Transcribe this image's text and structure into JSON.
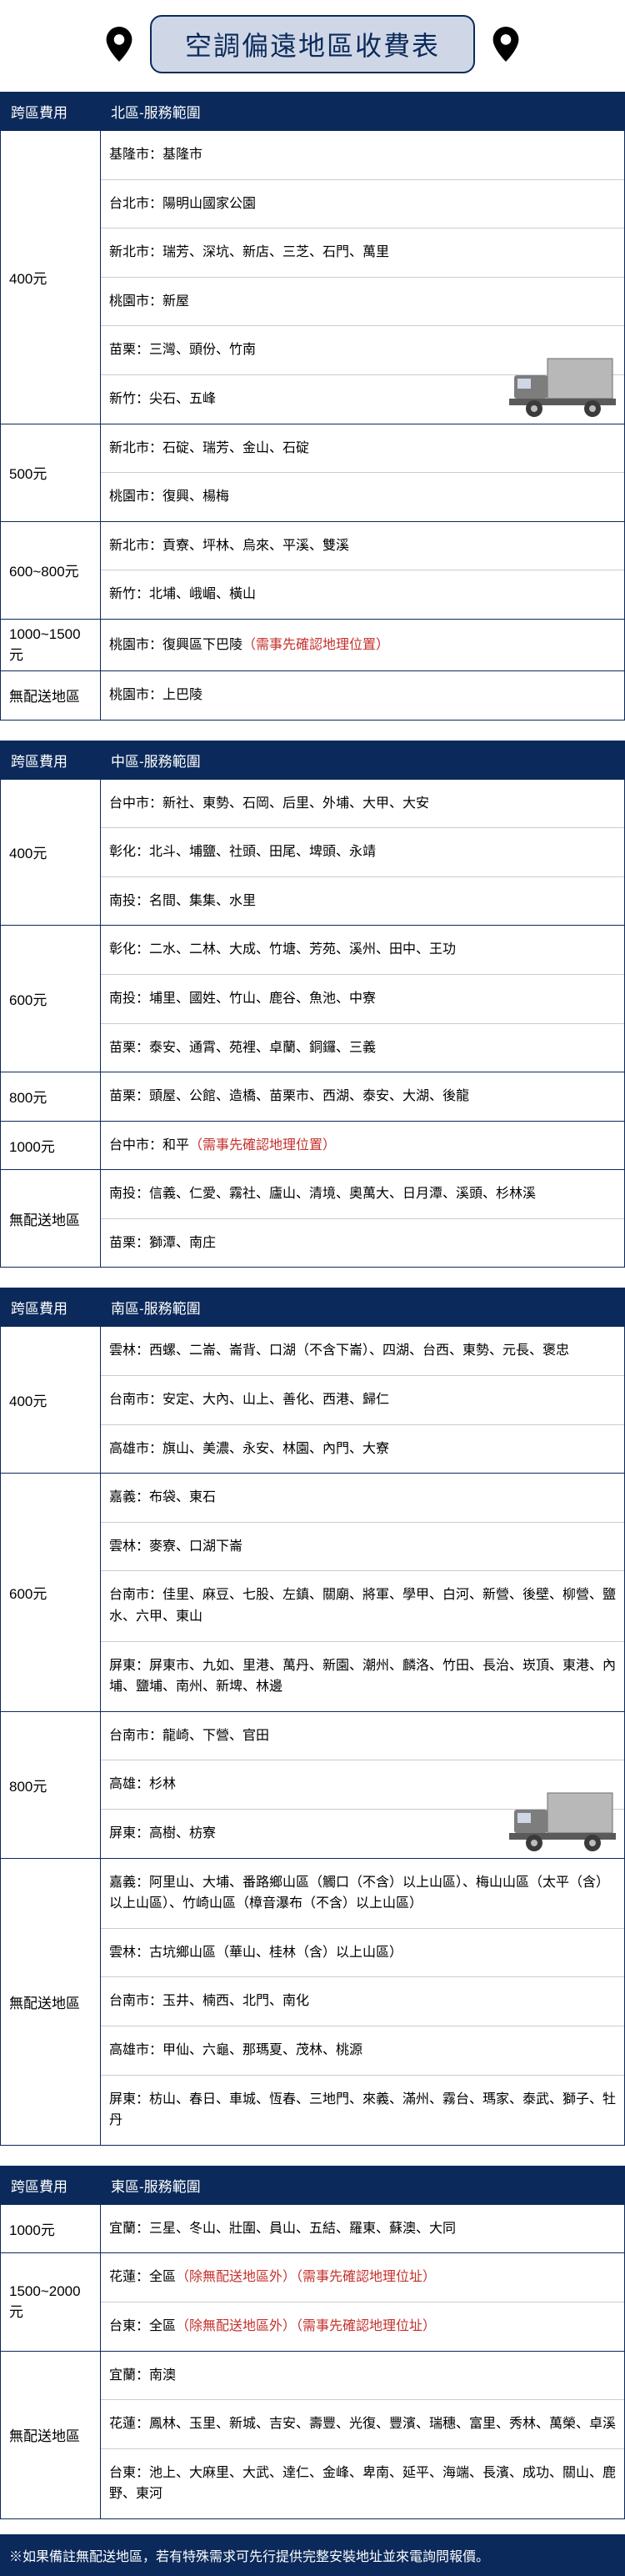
{
  "title": "空調偏遠地區收費表",
  "columns": {
    "fee": "跨區費用"
  },
  "colors": {
    "header_bg": "#0b2a5b",
    "header_text": "#ffffff",
    "title_bg": "#cfd7e6",
    "title_border": "#0b2a5b",
    "warn": "#c4302b",
    "row_divider": "#c8ccd4"
  },
  "regions": [
    {
      "scope_label": "北區-服務範圍",
      "rows": [
        {
          "fee": "400元",
          "truck": true,
          "areas": [
            "基隆市：基隆市",
            "台北市：陽明山國家公園",
            "新北市：瑞芳、深坑、新店、三芝、石門、萬里",
            "桃園市：新屋",
            "苗栗：三灣、頭份、竹南",
            "新竹：尖石、五峰"
          ]
        },
        {
          "fee": "500元",
          "areas": [
            "新北市：石碇、瑞芳、金山、石碇",
            "桃園市：復興、楊梅"
          ]
        },
        {
          "fee": "600~800元",
          "areas": [
            "新北市：貢寮、坪林、烏來、平溪、雙溪",
            "新竹：北埔、峨嵋、橫山"
          ]
        },
        {
          "fee": "1000~1500元",
          "areas": [
            {
              "text": "桃園市：復興區下巴陵",
              "warn": "（需事先確認地理位置）"
            }
          ]
        },
        {
          "fee": "無配送地區",
          "areas": [
            "桃園市：上巴陵"
          ]
        }
      ]
    },
    {
      "scope_label": "中區-服務範圍",
      "rows": [
        {
          "fee": "400元",
          "areas": [
            "台中市：新社、東勢、石岡、后里、外埔、大甲、大安",
            "彰化：北斗、埔鹽、社頭、田尾、埤頭、永靖",
            "南投：名間、集集、水里"
          ]
        },
        {
          "fee": "600元",
          "areas": [
            "彰化：二水、二林、大成、竹塘、芳苑、溪州、田中、王功",
            "南投：埔里、國姓、竹山、鹿谷、魚池、中寮",
            "苗栗：泰安、通霄、苑裡、卓蘭、銅鑼、三義"
          ]
        },
        {
          "fee": "800元",
          "areas": [
            "苗栗：頭屋、公館、造橋、苗栗市、西湖、泰安、大湖、後龍"
          ]
        },
        {
          "fee": "1000元",
          "areas": [
            {
              "text": "台中市：和平",
              "warn": "（需事先確認地理位置）"
            }
          ]
        },
        {
          "fee": "無配送地區",
          "areas": [
            "南投：信義、仁愛、霧社、廬山、清境、奧萬大、日月潭、溪頭、杉林溪",
            "苗栗：獅潭、南庄"
          ]
        }
      ]
    },
    {
      "scope_label": "南區-服務範圍",
      "rows": [
        {
          "fee": "400元",
          "areas": [
            "雲林：西螺、二崙、崙背、口湖（不含下崙）、四湖、台西、東勢、元長、褒忠",
            "台南市：安定、大內、山上、善化、西港、歸仁",
            "高雄市：旗山、美濃、永安、林園、內門、大寮"
          ]
        },
        {
          "fee": "600元",
          "areas": [
            "嘉義：布袋、東石",
            "雲林：麥寮、口湖下崙",
            "台南市：佳里、麻豆、七股、左鎮、關廟、將軍、學甲、白河、新營、後壁、柳營、鹽水、六甲、東山",
            "屏東：屏東市、九如、里港、萬丹、新園、潮州、麟洛、竹田、長治、崁頂、東港、內埔、鹽埔、南州、新埤、林邊"
          ]
        },
        {
          "fee": "800元",
          "truck": true,
          "areas": [
            "台南市：龍崎、下營、官田",
            "高雄：杉林",
            "屏東：高樹、枋寮"
          ]
        },
        {
          "fee": "無配送地區",
          "areas": [
            "嘉義：阿里山、大埔、番路鄉山區（觸口（不含）以上山區）、梅山山區（太平（含）以上山區）、竹崎山區（樟音瀑布（不含）以上山區）",
            "雲林：古坑鄉山區（華山、桂林（含）以上山區）",
            "台南市：玉井、楠西、北門、南化",
            "高雄市：甲仙、六龜、那瑪夏、茂林、桃源",
            "屏東：枋山、春日、車城、恆春、三地門、來義、滿州、霧台、瑪家、泰武、獅子、牡丹"
          ]
        }
      ]
    },
    {
      "scope_label": "東區-服務範圍",
      "rows": [
        {
          "fee": "1000元",
          "areas": [
            "宜蘭：三星、冬山、壯圍、員山、五結、羅東、蘇澳、大同"
          ]
        },
        {
          "fee": "1500~2000元",
          "areas": [
            {
              "text": "花蓮：全區",
              "warn": "（除無配送地區外）（需事先確認地理位址）"
            },
            {
              "text": "台東：全區",
              "warn": "（除無配送地區外）（需事先確認地理位址）"
            }
          ]
        },
        {
          "fee": "無配送地區",
          "areas": [
            "宜蘭：南澳",
            "花蓮：鳳林、玉里、新城、吉安、壽豐、光復、豐濱、瑞穗、富里、秀林、萬榮、卓溪",
            "台東：池上、大麻里、大武、達仁、金峰、卑南、延平、海端、長濱、成功、關山、鹿野、東河"
          ]
        }
      ]
    }
  ],
  "footer": "※如果備註無配送地區，若有特殊需求可先行提供完整安裝地址並來電詢問報價。"
}
